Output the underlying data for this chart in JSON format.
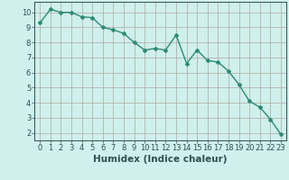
{
  "x": [
    0,
    1,
    2,
    3,
    4,
    5,
    6,
    7,
    8,
    9,
    10,
    11,
    12,
    13,
    14,
    15,
    16,
    17,
    18,
    19,
    20,
    21,
    22,
    23
  ],
  "y": [
    9.3,
    10.2,
    10.0,
    10.0,
    9.7,
    9.65,
    9.0,
    8.85,
    8.6,
    8.0,
    7.5,
    7.6,
    7.5,
    8.5,
    6.6,
    7.5,
    6.8,
    6.7,
    6.1,
    5.2,
    4.1,
    3.7,
    2.9,
    1.9
  ],
  "line_color": "#2e8b74",
  "marker": "D",
  "marker_size": 2,
  "bg_color": "#cff0ec",
  "grid_color_major": "#b0a8a0",
  "xlabel": "Humidex (Indice chaleur)",
  "ylim": [
    1.5,
    10.7
  ],
  "xlim": [
    -0.5,
    23.5
  ],
  "yticks": [
    2,
    3,
    4,
    5,
    6,
    7,
    8,
    9,
    10
  ],
  "xticks": [
    0,
    1,
    2,
    3,
    4,
    5,
    6,
    7,
    8,
    9,
    10,
    11,
    12,
    13,
    14,
    15,
    16,
    17,
    18,
    19,
    20,
    21,
    22,
    23
  ],
  "font_color": "#2e5050",
  "xlabel_fontsize": 7.5,
  "tick_fontsize": 6,
  "linewidth": 1.0
}
